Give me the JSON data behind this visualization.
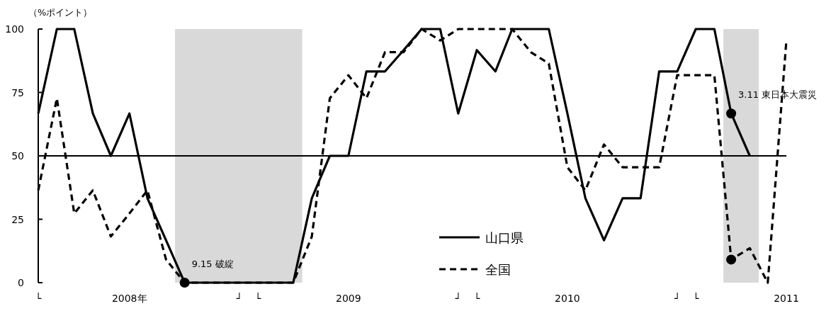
{
  "chart_data": {
    "type": "line",
    "ylabel": "（%ポイント）",
    "x": [
      "2008-01",
      "2008-02",
      "2008-03",
      "2008-04",
      "2008-05",
      "2008-06",
      "2008-07",
      "2008-08",
      "2008-09",
      "2008-10",
      "2008-11",
      "2008-12",
      "2009-01",
      "2009-02",
      "2009-03",
      "2009-04",
      "2009-05",
      "2009-06",
      "2009-07",
      "2009-08",
      "2009-09",
      "2009-10",
      "2009-11",
      "2009-12",
      "2010-01",
      "2010-02",
      "2010-03",
      "2010-04",
      "2010-05",
      "2010-06",
      "2010-07",
      "2010-08",
      "2010-09",
      "2010-10",
      "2010-11",
      "2010-12",
      "2011-01",
      "2011-02",
      "2011-03",
      "2011-04",
      "2011-05",
      "2011-06"
    ],
    "series": [
      {
        "name": "山口県",
        "color": "#000000",
        "line_style": "solid",
        "values": [
          66.7,
          100,
          100,
          66.7,
          50,
          66.7,
          33.3,
          16.7,
          0,
          0,
          0,
          0,
          0,
          0,
          0,
          33.3,
          50,
          50,
          83.3,
          83.3,
          91.7,
          100,
          100,
          66.7,
          91.7,
          83.3,
          100,
          100,
          100,
          66.7,
          33.3,
          16.7,
          33.3,
          33.3,
          83.3,
          83.3,
          100,
          100,
          66.7,
          50,
          null,
          null
        ]
      },
      {
        "name": "全国",
        "color": "#000000",
        "line_style": "dashed",
        "values": [
          36.4,
          72.7,
          27.3,
          36.4,
          18.2,
          27.3,
          36.4,
          9.1,
          0,
          0,
          0,
          0,
          0,
          0,
          0,
          18.2,
          72.7,
          81.8,
          72.7,
          90.9,
          90.9,
          100,
          95.5,
          100,
          100,
          100,
          100,
          90.9,
          86.4,
          45.5,
          36.4,
          54.5,
          45.5,
          45.5,
          45.5,
          81.8,
          81.8,
          81.8,
          9.1,
          13.6,
          0,
          95.5
        ]
      },
      {
        "type": "scatter",
        "marker": "circle",
        "color": "#000000",
        "x": [
          "2008-09",
          "2011-03",
          "2011-03"
        ],
        "values": [
          0,
          66.7,
          9.1
        ]
      }
    ],
    "xlim": [
      "2008-01",
      "2011-06"
    ],
    "ylim": [
      0,
      100
    ],
    "yticks": [
      0,
      25,
      50,
      75,
      100
    ],
    "xticks": [
      {
        "value": "2008-01",
        "label": "└"
      },
      {
        "value": "2008-06",
        "label": "2008年"
      },
      {
        "value": "2008-12",
        "label": "┘"
      },
      {
        "value": "2009-01",
        "label": "└"
      },
      {
        "value": "2009-06",
        "label": "2009"
      },
      {
        "value": "2009-12",
        "label": "┘"
      },
      {
        "value": "2010-01",
        "label": "└"
      },
      {
        "value": "2010-06",
        "label": "2010"
      },
      {
        "value": "2010-12",
        "label": "┘"
      },
      {
        "value": "2011-01",
        "label": "└"
      },
      {
        "value": "2011-06",
        "label": "2011"
      }
    ],
    "ref_lines": [
      {
        "axis": "y",
        "value": 50,
        "color": "#000000"
      }
    ],
    "bands": [
      {
        "axis": "x",
        "from": "2008-08-16",
        "to": "2009-03-16",
        "color": "#d9d9d9"
      },
      {
        "axis": "x",
        "from": "2011-02-16",
        "to": "2011-04-16",
        "color": "#d9d9d9"
      }
    ],
    "annotations": [
      {
        "text": "9.15 破綻",
        "x": "2008-09",
        "y": 0
      },
      {
        "text": "3.11 東日本大震災",
        "x": "2011-03",
        "y": 66.7
      }
    ],
    "legend": "bottom"
  }
}
